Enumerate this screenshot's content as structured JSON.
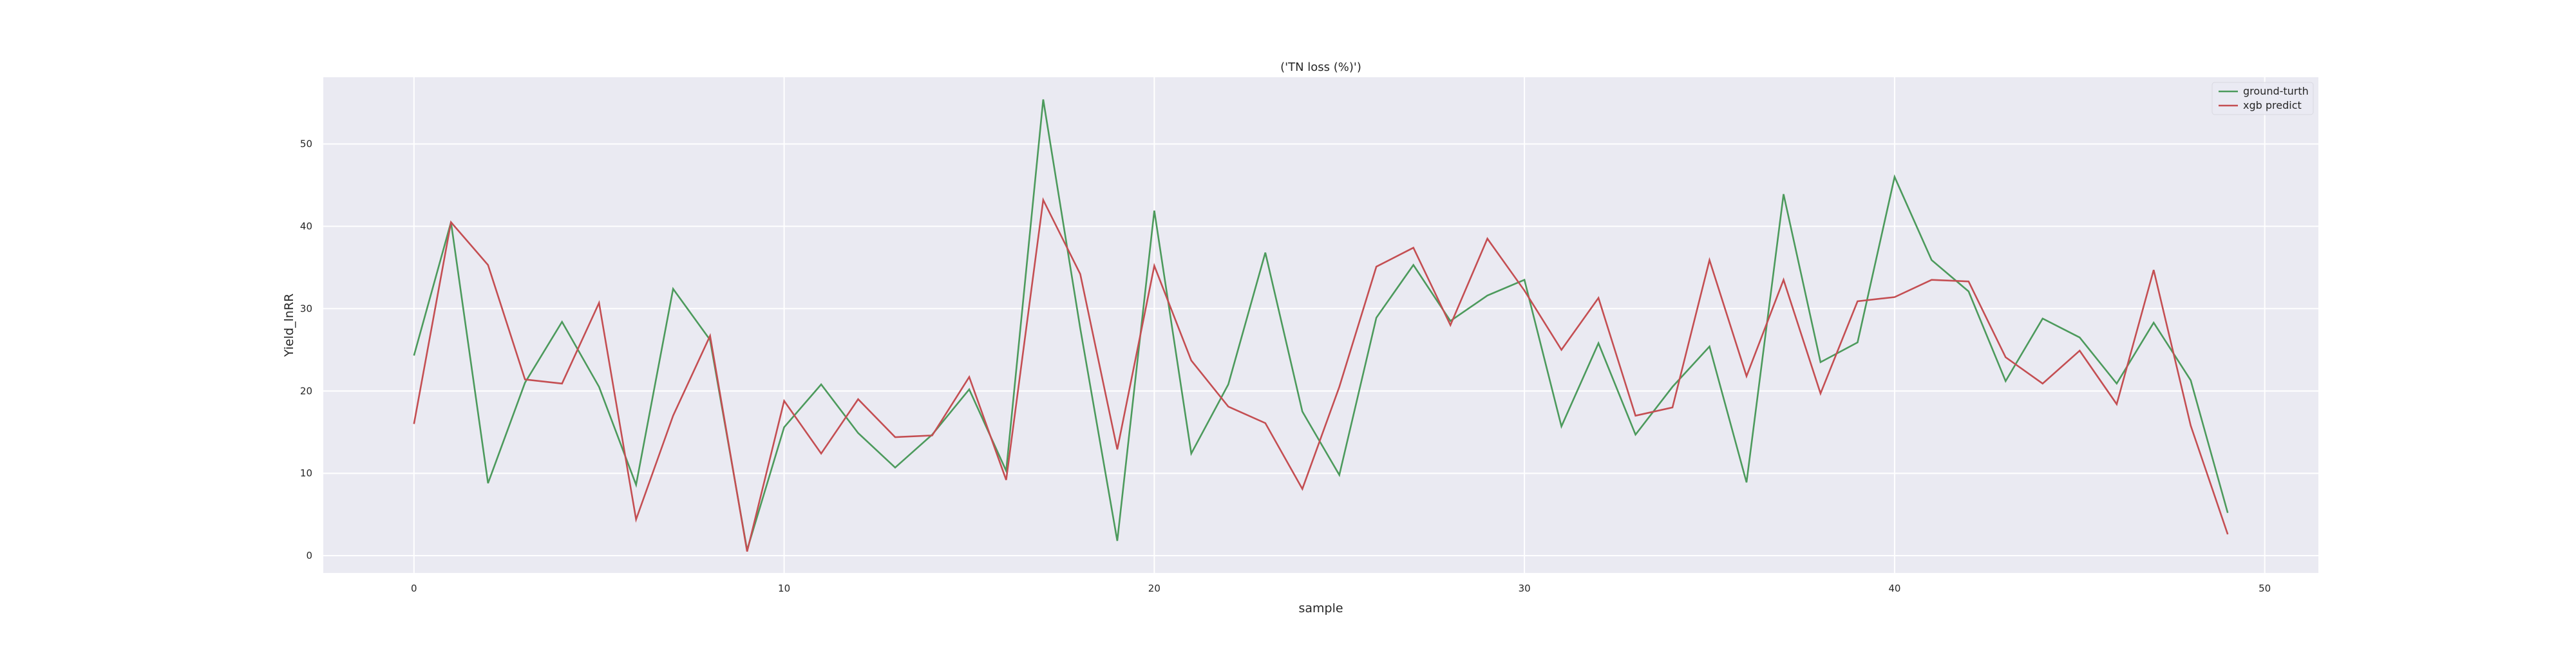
{
  "chart_data": {
    "type": "line",
    "title": "('TN loss (%)')",
    "xlabel": "sample",
    "ylabel": "Yield_lnRR",
    "xlim": [
      -2.45,
      51.45
    ],
    "ylim": [
      -2.1,
      58.1
    ],
    "xticks": [
      0,
      10,
      20,
      30,
      40,
      50
    ],
    "yticks": [
      0,
      10,
      20,
      30,
      40,
      50
    ],
    "grid": true,
    "legend_position": "top-right",
    "background": "#eaeaf2",
    "x": [
      0,
      1,
      2,
      3,
      4,
      5,
      6,
      7,
      8,
      9,
      10,
      11,
      12,
      13,
      14,
      15,
      16,
      17,
      18,
      19,
      20,
      21,
      22,
      23,
      24,
      25,
      26,
      27,
      28,
      29,
      30,
      31,
      32,
      33,
      34,
      35,
      36,
      37,
      38,
      39,
      40,
      41,
      42,
      43,
      44,
      45,
      46,
      47,
      48,
      49
    ],
    "series": [
      {
        "name": "ground-turth",
        "color": "#4c9a5c",
        "values": [
          24.3,
          40.5,
          8.8,
          21.0,
          28.4,
          20.5,
          8.6,
          32.4,
          26.2,
          0.7,
          15.6,
          20.8,
          14.9,
          10.7,
          14.7,
          20.2,
          10.3,
          55.4,
          27.6,
          1.8,
          41.9,
          12.4,
          20.8,
          36.8,
          17.5,
          9.8,
          28.9,
          35.3,
          28.5,
          31.6,
          33.5,
          15.7,
          25.8,
          14.7,
          20.5,
          25.4,
          8.9,
          43.9,
          23.5,
          25.9,
          46.0,
          35.9,
          32.1,
          21.2,
          28.8,
          26.5,
          20.9,
          28.3,
          21.3,
          5.2
        ]
      },
      {
        "name": "xgb predict",
        "color": "#c44e52",
        "values": [
          16.0,
          40.5,
          35.3,
          21.4,
          20.9,
          30.7,
          4.4,
          17.0,
          26.7,
          0.5,
          18.8,
          12.4,
          19.0,
          14.4,
          14.6,
          21.7,
          9.2,
          43.2,
          34.2,
          12.9,
          35.2,
          23.7,
          18.1,
          16.1,
          8.1,
          20.5,
          35.1,
          37.4,
          28.0,
          38.5,
          32.2,
          25.0,
          31.3,
          17.0,
          18.0,
          35.9,
          21.8,
          33.5,
          19.7,
          30.9,
          31.4,
          33.5,
          33.3,
          24.1,
          20.9,
          24.9,
          18.4,
          34.7,
          15.8,
          2.6
        ]
      }
    ]
  }
}
